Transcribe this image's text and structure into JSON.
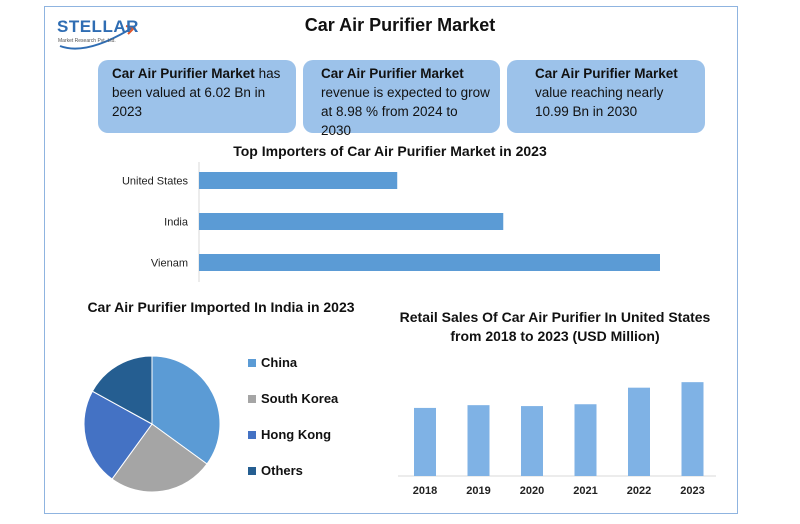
{
  "header": {
    "title": "Car Air Purifier Market",
    "logo_text": "STELLAR",
    "logo_sub": "Market Research Pvt. Ltd."
  },
  "cards": [
    {
      "bold": "Car Air Purifier Market",
      "text": " has been valued at 6.02 Bn in 2023"
    },
    {
      "bold": "Car Air Purifier Market",
      "text": " revenue is expected to grow at 8.98 % from 2024 to 2030"
    },
    {
      "bold": "Car Air Purifier Market",
      "text": " value reaching nearly 10.99 Bn in 2030"
    }
  ],
  "colors": {
    "bar": "#5b9bd5",
    "card": "#9cc2ea",
    "china": "#5b9bd5",
    "south_korea": "#a5a5a5",
    "hong_kong": "#4472c4",
    "others": "#255e91",
    "retail_bar": "#7fb2e5"
  },
  "chart_data": [
    {
      "type": "bar",
      "orientation": "horizontal",
      "title": "Top Importers of Car Air Purifier Market in 2023",
      "categories": [
        "United States",
        "India",
        "Vienam"
      ],
      "values": [
        43,
        66,
        100
      ],
      "xlim": [
        0,
        100
      ],
      "grid": false
    },
    {
      "type": "pie",
      "title": "Car Air Purifier Imported In India in 2023",
      "labels": [
        "China",
        "South Korea",
        "Hong Kong",
        "Others"
      ],
      "values": [
        35,
        25,
        23,
        17
      ],
      "legend": "right"
    },
    {
      "type": "bar",
      "title": "Retail Sales Of Car Air Purifier In United States from 2018 to 2023 (USD Million)",
      "categories": [
        "2018",
        "2019",
        "2020",
        "2021",
        "2022",
        "2023"
      ],
      "values": [
        74,
        77,
        76,
        78,
        96,
        102
      ],
      "ylim": [
        0,
        120
      ],
      "grid": false
    }
  ]
}
